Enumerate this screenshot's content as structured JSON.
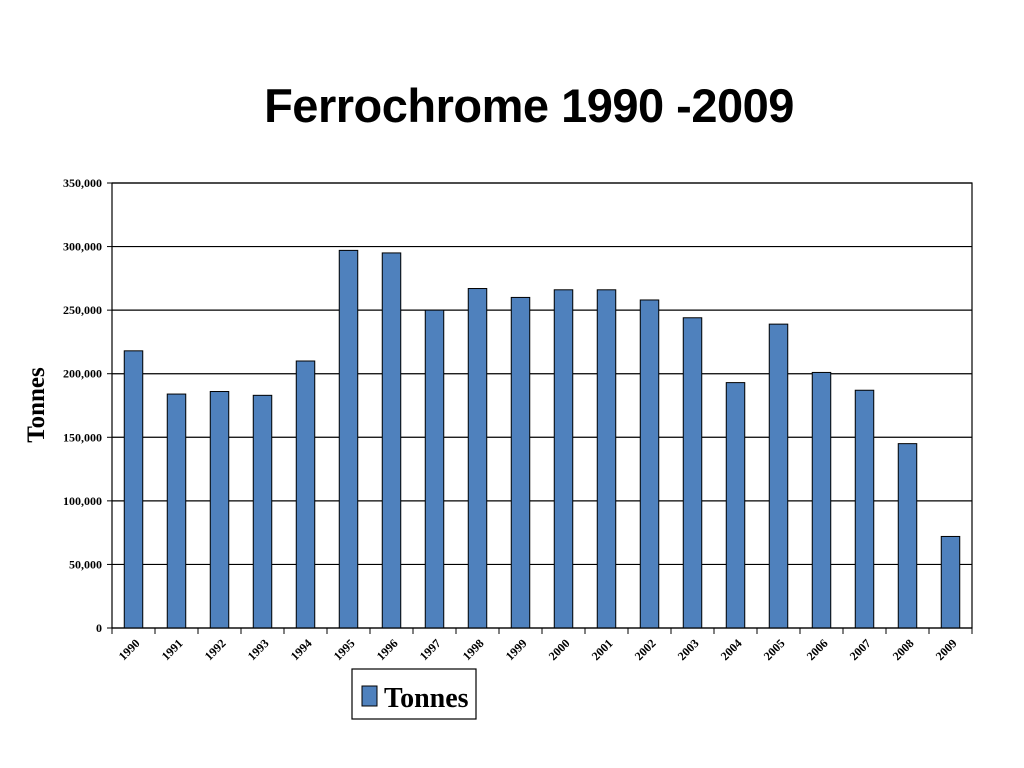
{
  "chart_data": {
    "type": "bar",
    "title": "Ferrochrome 1990 -2009",
    "xlabel": "",
    "ylabel": "Tonnes",
    "categories": [
      "1990",
      "1991",
      "1992",
      "1993",
      "1994",
      "1995",
      "1996",
      "1997",
      "1998",
      "1999",
      "2000",
      "2001",
      "2002",
      "2003",
      "2004",
      "2005",
      "2006",
      "2007",
      "2008",
      "2009"
    ],
    "series": [
      {
        "name": "Tonnes",
        "values": [
          218000,
          184000,
          186000,
          183000,
          210000,
          297000,
          295000,
          250000,
          267000,
          260000,
          266000,
          266000,
          258000,
          244000,
          193000,
          239000,
          201000,
          187000,
          145000,
          72000
        ]
      }
    ],
    "ylim": [
      0,
      350000
    ],
    "yticks": [
      0,
      50000,
      100000,
      150000,
      200000,
      250000,
      300000,
      350000
    ],
    "ytick_labels": [
      "0",
      "50,000",
      "100,000",
      "150,000",
      "200,000",
      "250,000",
      "300,000",
      "350,000"
    ],
    "grid": true,
    "legend": "bottom-center",
    "colors": {
      "bar": "#4f81bd",
      "bar_edge": "#000000",
      "grid": "#000000"
    }
  }
}
